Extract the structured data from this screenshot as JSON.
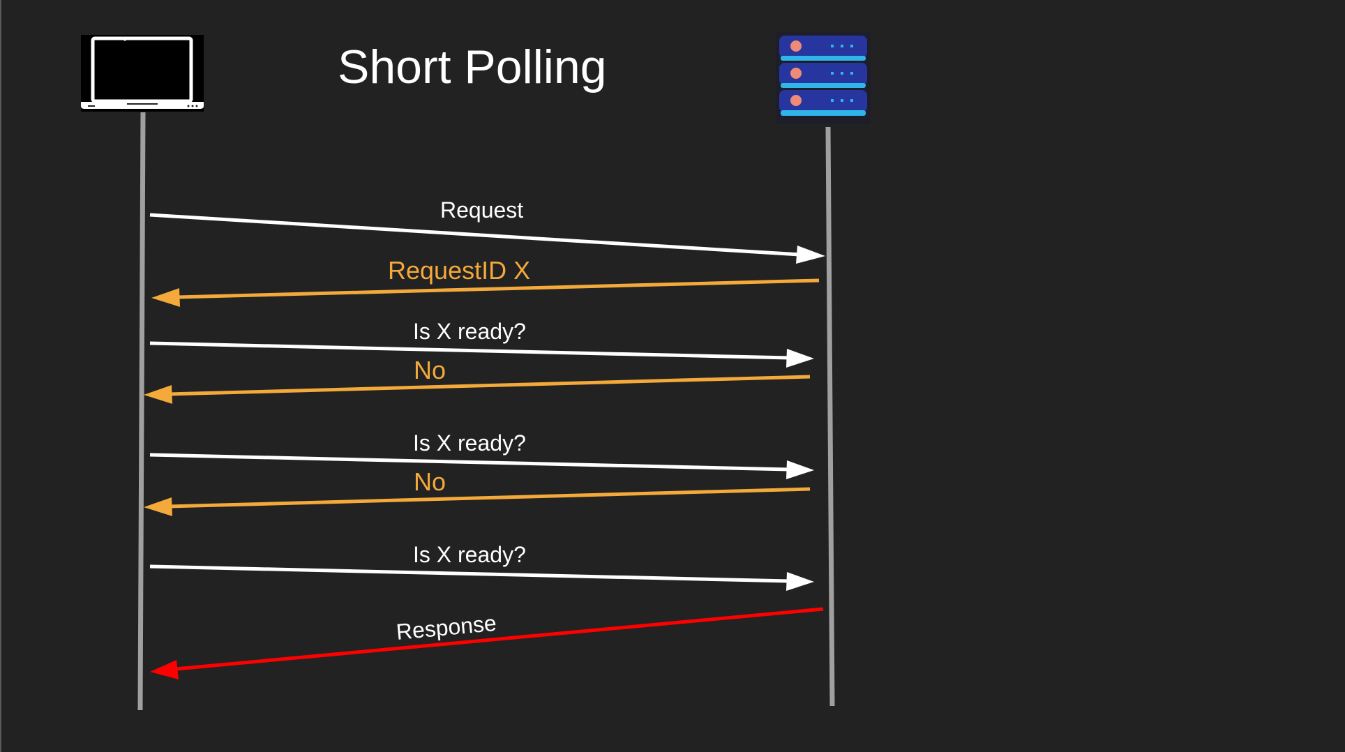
{
  "diagram": {
    "title": "Short Polling",
    "actors": [
      {
        "name": "client",
        "icon": "laptop-icon"
      },
      {
        "name": "server",
        "icon": "server-icon"
      }
    ],
    "messages": [
      {
        "label": "Request",
        "direction": "client-to-server",
        "color": "#ffffff"
      },
      {
        "label": "RequestID X",
        "direction": "server-to-client",
        "color": "#f4a93b"
      },
      {
        "label": "Is X ready?",
        "direction": "client-to-server",
        "color": "#ffffff"
      },
      {
        "label": "No",
        "direction": "server-to-client",
        "color": "#f4a93b"
      },
      {
        "label": "Is X ready?",
        "direction": "client-to-server",
        "color": "#ffffff"
      },
      {
        "label": "No",
        "direction": "server-to-client",
        "color": "#f4a93b"
      },
      {
        "label": "Is X ready?",
        "direction": "client-to-server",
        "color": "#ffffff"
      },
      {
        "label": "Response",
        "direction": "server-to-client",
        "color": "#ff0000"
      }
    ]
  },
  "colors": {
    "background": "#222222",
    "lifeline": "#a0a0a0",
    "request": "#ffffff",
    "poll_reply": "#f4a93b",
    "response": "#ff0000"
  }
}
